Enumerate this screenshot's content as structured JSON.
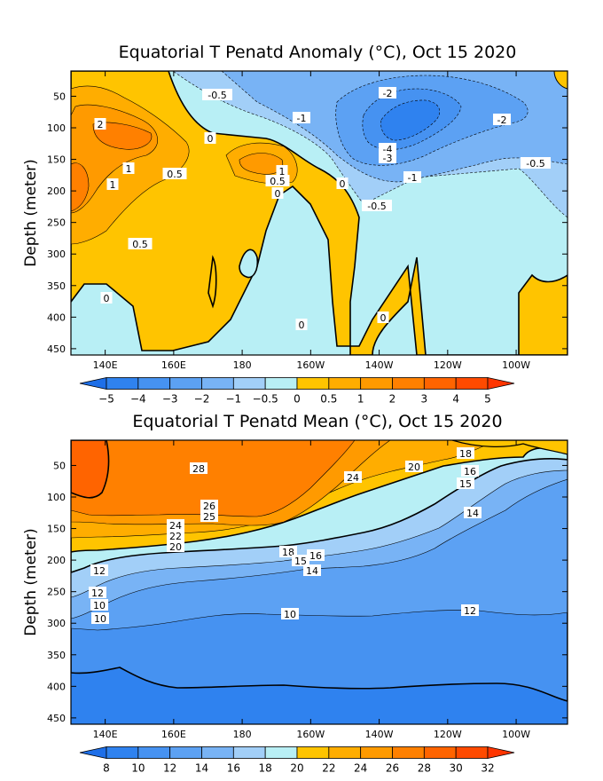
{
  "chart_data": [
    {
      "type": "heatmap",
      "title": "Equatorial T Penatd Anomaly (°C), Oct 15 2020",
      "ylabel": "Depth (meter)",
      "xlabel": "",
      "x_ticks": [
        "140E",
        "160E",
        "180",
        "160W",
        "140W",
        "120W",
        "100W"
      ],
      "y_ticks": [
        50,
        100,
        150,
        200,
        250,
        300,
        350,
        400,
        450
      ],
      "ylim": [
        460,
        10
      ],
      "xlim_lon": [
        130,
        275
      ],
      "colorbar": {
        "levels": [
          "-5",
          "-4",
          "-3",
          "-2",
          "-1",
          "-0.5",
          "0",
          "0.5",
          "1",
          "2",
          "3",
          "4",
          "5"
        ],
        "colors": [
          "#1e6fe8",
          "#2f82ef",
          "#4692f1",
          "#5ca1f3",
          "#78b3f5",
          "#a2cff8",
          "#b8eff5",
          "#ffc400",
          "#ffad00",
          "#ff9a00",
          "#ff8000",
          "#ff6400",
          "#ff4a00",
          "#ff3500"
        ]
      },
      "contour_labels": [
        "-0.5",
        "-2",
        "-1",
        "2",
        "0",
        "-4",
        "-3",
        "-2",
        "1",
        "1",
        "0.5",
        "-1",
        "-0.5",
        "1",
        "0.5",
        "0",
        "0",
        "-0.5",
        "0.5",
        "0",
        "0",
        "0"
      ]
    },
    {
      "type": "heatmap",
      "title": "Equatorial T Penatd Mean (°C), Oct 15 2020",
      "ylabel": "Depth (meter)",
      "xlabel": "",
      "x_ticks": [
        "140E",
        "160E",
        "180",
        "160W",
        "140W",
        "120W",
        "100W"
      ],
      "y_ticks": [
        50,
        100,
        150,
        200,
        250,
        300,
        350,
        400,
        450
      ],
      "ylim": [
        460,
        10
      ],
      "xlim_lon": [
        130,
        275
      ],
      "colorbar": {
        "levels": [
          "8",
          "10",
          "12",
          "14",
          "16",
          "18",
          "20",
          "22",
          "24",
          "26",
          "28",
          "30",
          "32"
        ],
        "colors": [
          "#1e6fe8",
          "#2f82ef",
          "#4692f1",
          "#5ca1f3",
          "#78b3f5",
          "#a2cff8",
          "#b8eff5",
          "#ffc400",
          "#ffad00",
          "#ff9a00",
          "#ff8000",
          "#ff6400",
          "#ff4a00",
          "#ff3500"
        ]
      },
      "contour_labels": [
        "28",
        "26",
        "25",
        "24",
        "22",
        "20",
        "20",
        "24",
        "18",
        "16",
        "15",
        "14",
        "18",
        "16",
        "15",
        "14",
        "12",
        "12",
        "10",
        "10",
        "10",
        "12"
      ]
    }
  ]
}
